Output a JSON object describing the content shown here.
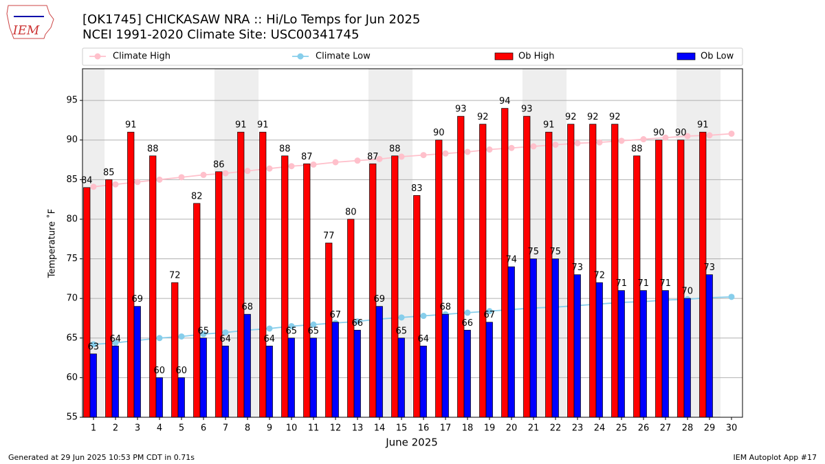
{
  "logo": "IEM",
  "footer_left": "Generated at 29 Jun 2025 10:53 PM CDT in 0.71s",
  "footer_right": "IEM Autoplot App #17",
  "chart_data": {
    "type": "bar",
    "title": "[OK1745] CHICKASAW NRA :: Hi/Lo Temps for Jun 2025",
    "subtitle": "NCEI 1991-2020 Climate Site: USC00341745",
    "xlabel": "June 2025",
    "ylabel": "Temperature ˚F",
    "x": [
      1,
      2,
      3,
      4,
      5,
      6,
      7,
      8,
      9,
      10,
      11,
      12,
      13,
      14,
      15,
      16,
      17,
      18,
      19,
      20,
      21,
      22,
      23,
      24,
      25,
      26,
      27,
      28,
      29,
      30
    ],
    "xlim": [
      0.5,
      30.5
    ],
    "xticks": [
      1,
      2,
      3,
      4,
      5,
      6,
      7,
      8,
      9,
      10,
      11,
      12,
      13,
      14,
      15,
      16,
      17,
      18,
      19,
      20,
      21,
      22,
      23,
      24,
      25,
      26,
      27,
      28,
      29,
      30
    ],
    "ylim": [
      55,
      99
    ],
    "yticks": [
      55,
      60,
      65,
      70,
      75,
      80,
      85,
      90,
      95
    ],
    "grid": true,
    "shaded_days": [
      1,
      7,
      8,
      14,
      15,
      21,
      22,
      28,
      29
    ],
    "series": [
      {
        "name": "Climate High",
        "kind": "line",
        "color": "#ffc0cb",
        "values": [
          84.1,
          84.4,
          84.7,
          85.0,
          85.3,
          85.6,
          85.8,
          86.1,
          86.4,
          86.7,
          86.9,
          87.2,
          87.4,
          87.6,
          87.9,
          88.1,
          88.3,
          88.5,
          88.8,
          89.0,
          89.2,
          89.4,
          89.6,
          89.7,
          89.9,
          90.1,
          90.3,
          90.5,
          90.6,
          90.8
        ]
      },
      {
        "name": "Climate Low",
        "kind": "line",
        "color": "#87ceeb",
        "values": [
          64.2,
          64.4,
          64.7,
          65.0,
          65.2,
          65.5,
          65.7,
          66.0,
          66.2,
          66.5,
          66.7,
          66.9,
          67.1,
          67.4,
          67.6,
          67.8,
          68.0,
          68.2,
          68.4,
          68.6,
          68.8,
          68.9,
          69.1,
          69.3,
          69.5,
          69.6,
          69.8,
          69.9,
          70.1,
          70.2
        ]
      },
      {
        "name": "Ob High",
        "kind": "bar",
        "color": "#ff0000",
        "values": [
          84,
          85,
          91,
          88,
          72,
          82,
          86,
          91,
          91,
          88,
          87,
          77,
          80,
          87,
          88,
          83,
          90,
          93,
          92,
          94,
          93,
          91,
          92,
          92,
          92,
          88,
          90,
          90,
          91,
          null
        ]
      },
      {
        "name": "Ob Low",
        "kind": "bar",
        "color": "#0000ff",
        "values": [
          63,
          64,
          69,
          60,
          60,
          65,
          64,
          68,
          64,
          65,
          65,
          67,
          66,
          69,
          65,
          64,
          68,
          66,
          67,
          74,
          75,
          75,
          73,
          72,
          71,
          71,
          71,
          70,
          73,
          null
        ]
      }
    ]
  }
}
